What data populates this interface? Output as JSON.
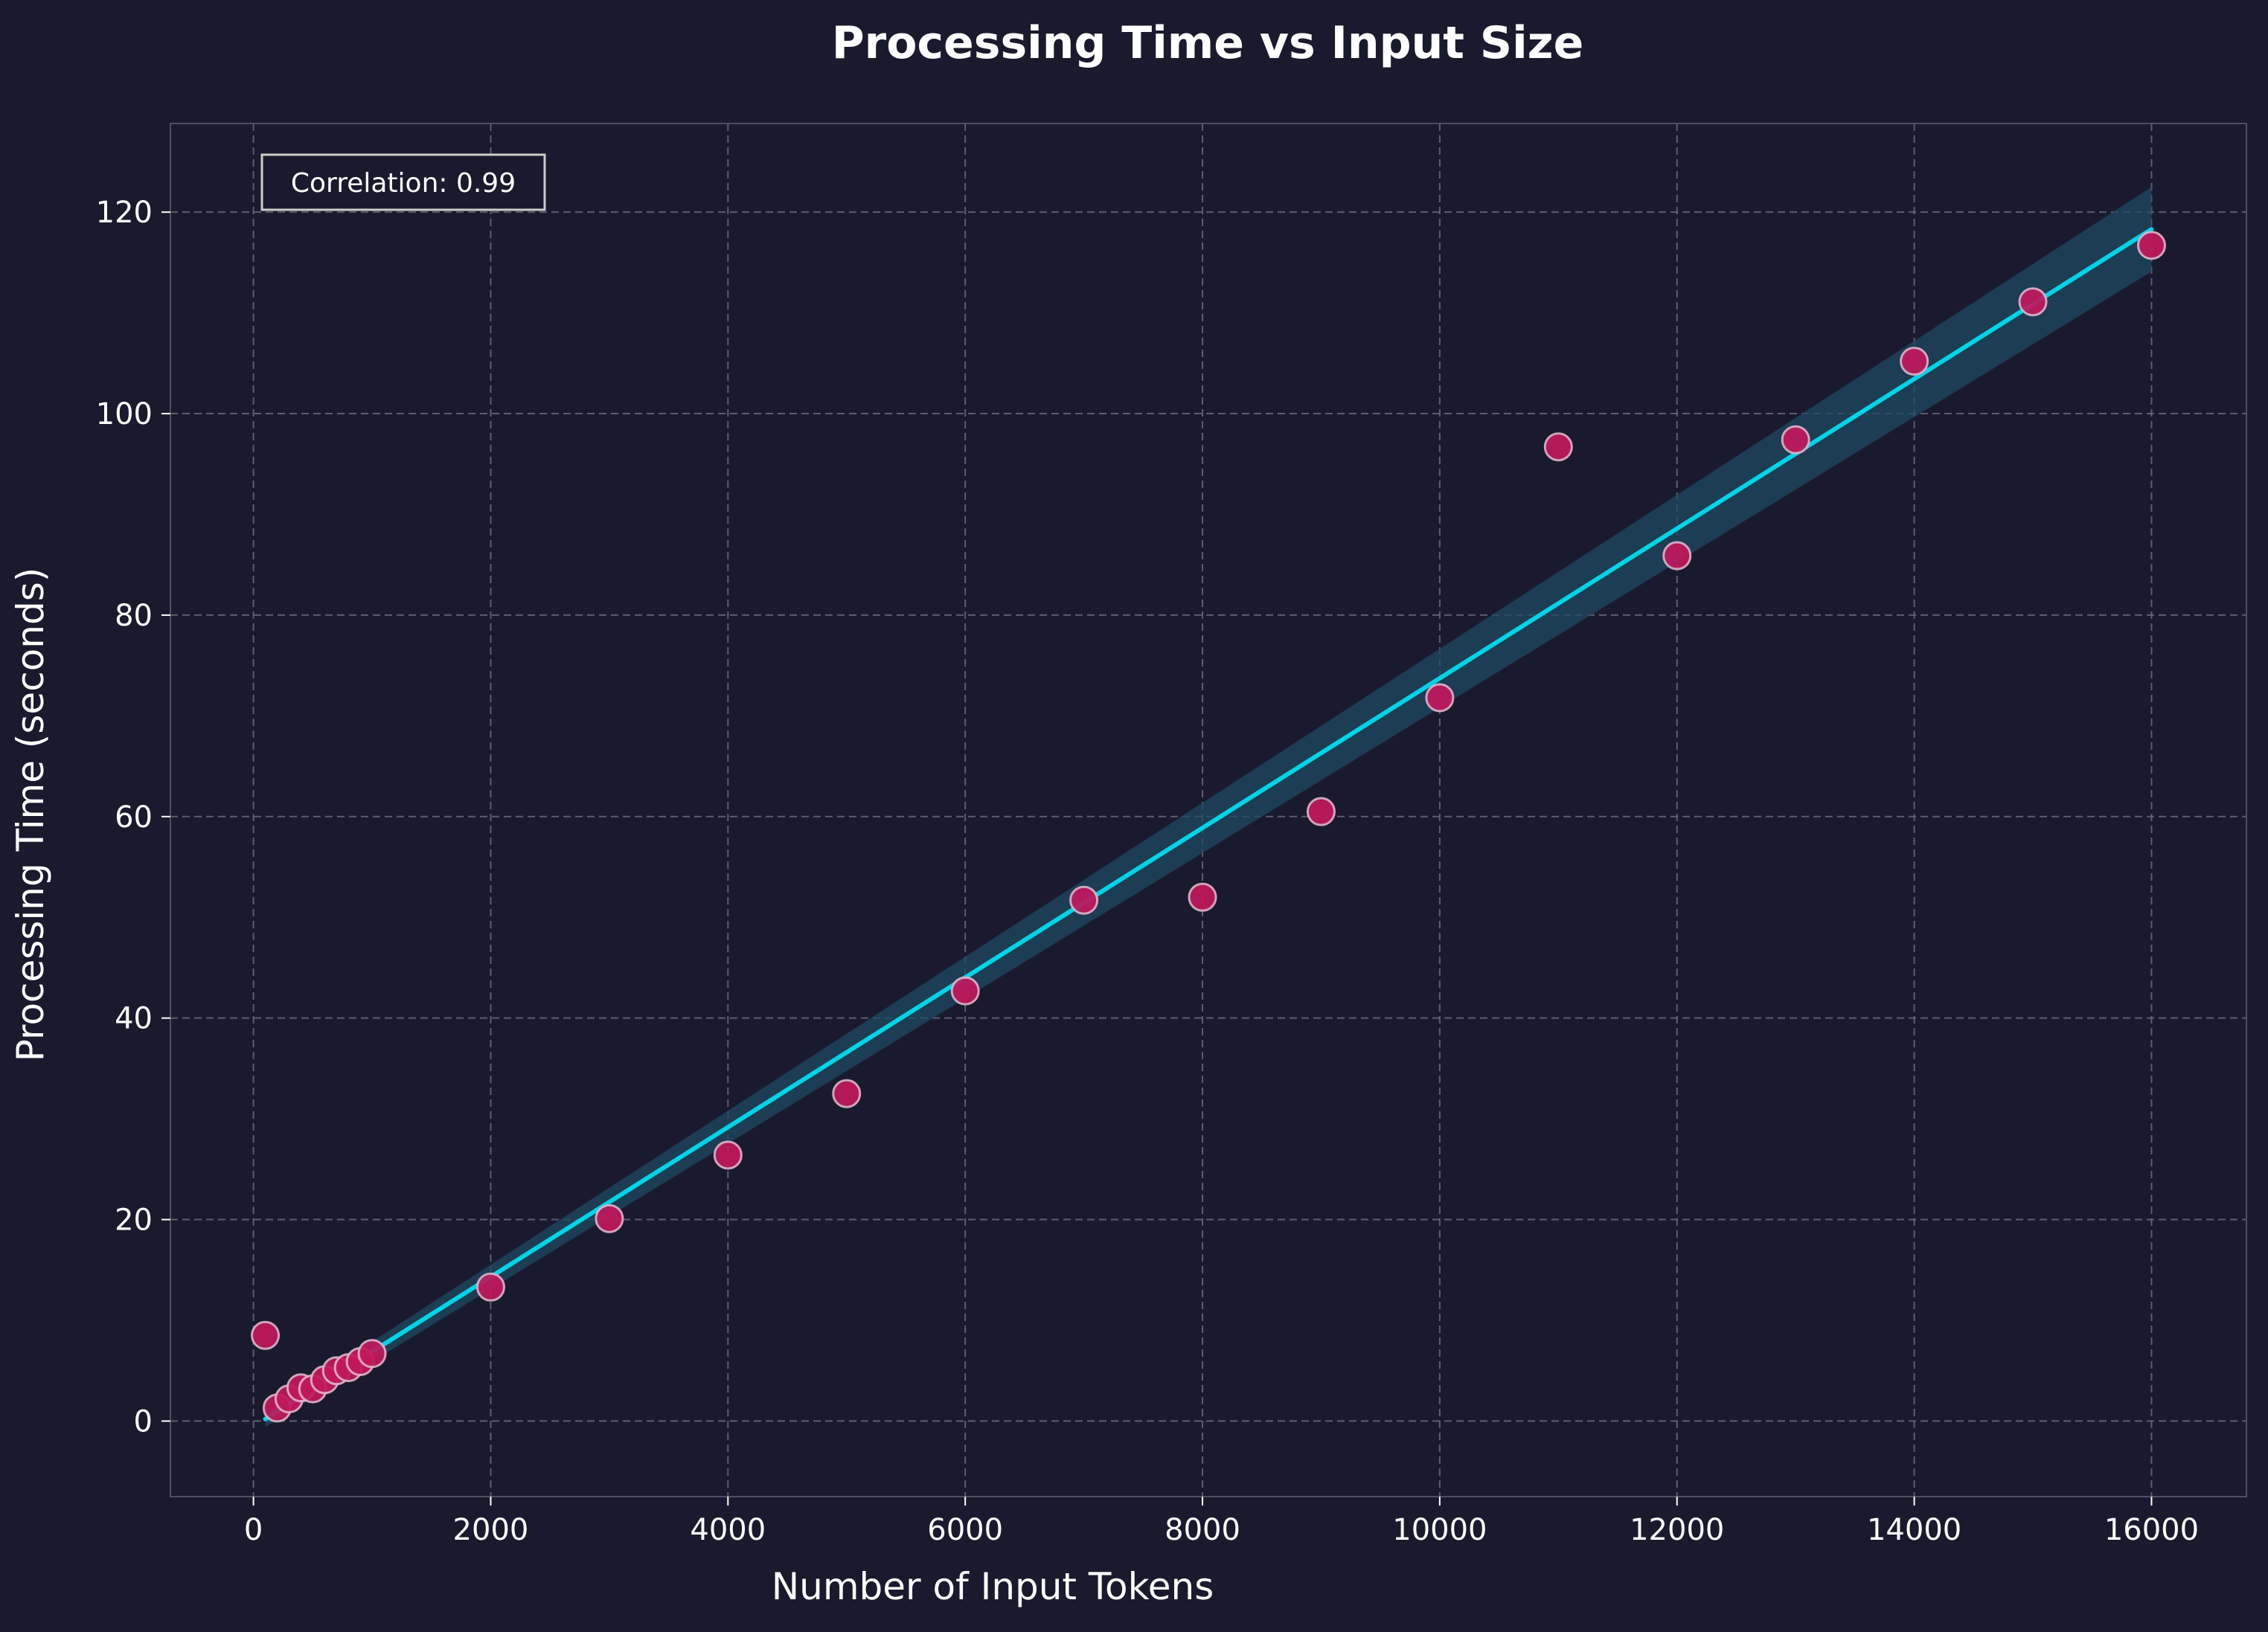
{
  "chart_data": {
    "type": "scatter",
    "title": "Processing Time vs Input Size",
    "xlabel": "Number of Input Tokens",
    "ylabel": "Processing Time (seconds)",
    "xlim": [
      -700,
      16800
    ],
    "ylim": [
      -7.5,
      128.8
    ],
    "xticks": [
      0,
      2000,
      4000,
      6000,
      8000,
      10000,
      12000,
      14000,
      16000
    ],
    "yticks": [
      0,
      20,
      40,
      60,
      80,
      100,
      120
    ],
    "grid": true,
    "annotation": "Correlation: 0.99",
    "colors": {
      "background": "#1a1a2e",
      "points": "#c2185b",
      "point_edge": "#e0b0c8",
      "trend_line": "#00d4e8",
      "band": "#1e4a60",
      "grid": "#6e6e80",
      "text": "#ffffff"
    },
    "series": [
      {
        "x": [
          100,
          200,
          300,
          400,
          500,
          600,
          700,
          800,
          900,
          1000,
          2000,
          3000,
          4000,
          5000,
          6000,
          7000,
          8000,
          9000,
          10000,
          11000,
          12000,
          13000,
          14000,
          15000,
          16000
        ],
        "y": [
          8.5,
          1.3,
          2.2,
          3.3,
          3.2,
          4.1,
          5.0,
          5.3,
          5.9,
          6.7,
          13.3,
          20.1,
          26.4,
          32.5,
          42.7,
          51.7,
          52.0,
          60.5,
          71.8,
          96.7,
          85.9,
          97.4,
          105.2,
          111.1,
          116.7
        ]
      }
    ],
    "trend": {
      "x": [
        100,
        16000
      ],
      "y": [
        0.2,
        118.3
      ],
      "band_halfwidth": [
        0.8,
        4.2
      ]
    }
  }
}
